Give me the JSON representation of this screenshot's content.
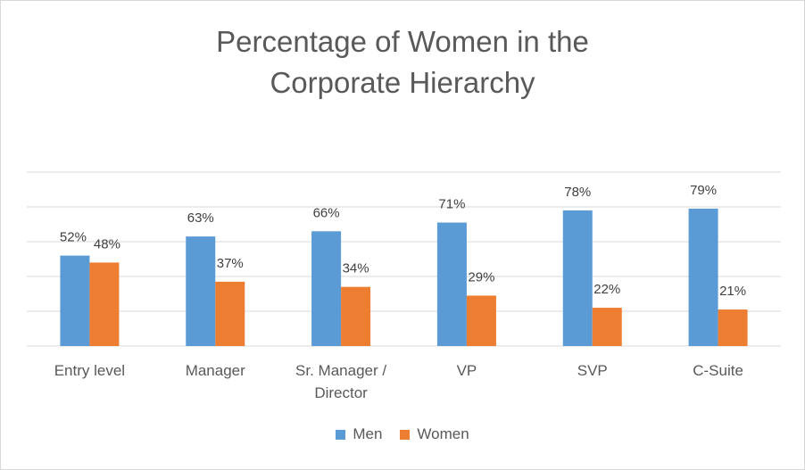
{
  "chart_data": {
    "type": "bar",
    "title_lines": [
      "Percentage of Women in the",
      "Corporate Hierarchy"
    ],
    "categories": [
      [
        "Entry level"
      ],
      [
        "Manager"
      ],
      [
        "Sr. Manager /",
        "Director"
      ],
      [
        "VP"
      ],
      [
        "SVP"
      ],
      [
        "C-Suite"
      ]
    ],
    "series": [
      {
        "name": "Men",
        "color": "#5b9bd5",
        "values": [
          52,
          63,
          66,
          71,
          78,
          79
        ],
        "labels": [
          "52%",
          "63%",
          "66%",
          "71%",
          "78%",
          "79%"
        ]
      },
      {
        "name": "Women",
        "color": "#ed7d31",
        "values": [
          48,
          37,
          34,
          29,
          22,
          21
        ],
        "labels": [
          "48%",
          "37%",
          "34%",
          "29%",
          "22%",
          "21%"
        ]
      }
    ],
    "ylim": [
      0,
      100
    ],
    "grid": true,
    "legend_position": "bottom"
  }
}
